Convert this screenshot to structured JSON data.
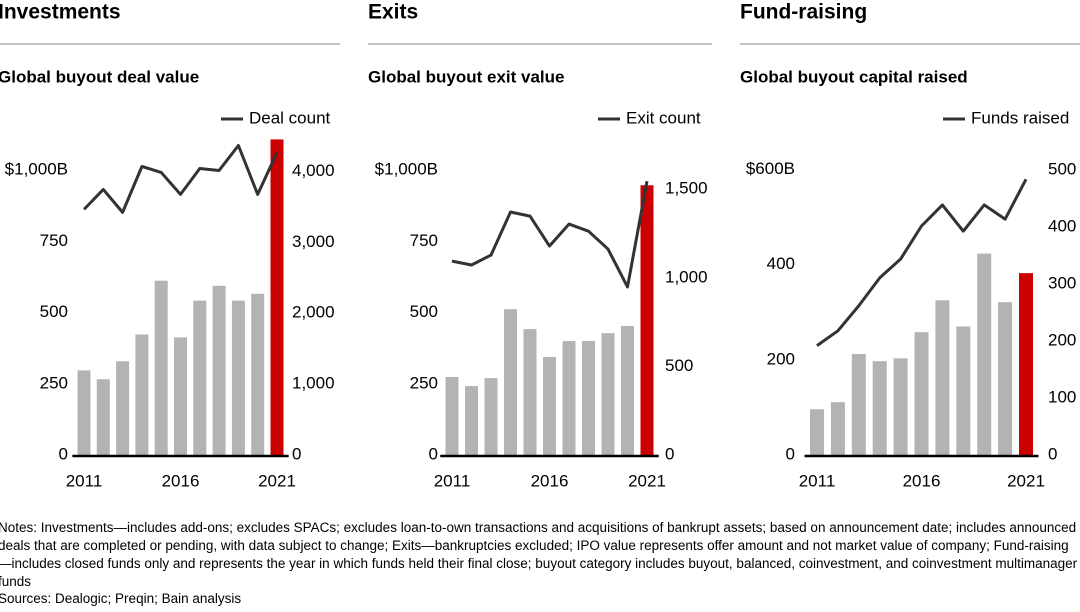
{
  "chart_data": [
    {
      "type": "bar-line",
      "section": "Investments",
      "title": "Global buyout deal value",
      "categories": [
        "2011",
        null,
        null,
        null,
        null,
        "2016",
        null,
        null,
        null,
        null,
        "2021"
      ],
      "series": [
        {
          "type": "bar",
          "colors": [
            "#b3b3b3",
            "#b3b3b3",
            "#b3b3b3",
            "#b3b3b3",
            "#b3b3b3",
            "#b3b3b3",
            "#b3b3b3",
            "#b3b3b3",
            "#b3b3b3",
            "#b3b3b3",
            "#cc0000"
          ],
          "values": [
            297,
            266,
            329,
            423,
            612,
            413,
            542,
            594,
            542,
            566,
            1108
          ]
        },
        {
          "type": "line",
          "name": "Deal count",
          "color": "#333333",
          "axis": "y2",
          "values": [
            3465,
            3746,
            3423,
            4070,
            3986,
            3676,
            4042,
            4014,
            4366,
            3676,
            4268
          ]
        }
      ],
      "ylim": [
        0,
        1120
      ],
      "yticks": [
        0,
        250,
        500,
        750,
        {
          "value": 1000,
          "label": "$1,000B"
        }
      ],
      "y2lim": [
        0,
        4500
      ],
      "y2ticks": [
        0,
        {
          "value": 1000,
          "label": "1,000"
        },
        {
          "value": 2000,
          "label": "2,000"
        },
        {
          "value": 3000,
          "label": "3,000"
        },
        {
          "value": 4000,
          "label": "4,000"
        }
      ]
    },
    {
      "type": "bar-line",
      "section": "Exits",
      "title": "Global buyout exit value",
      "categories": [
        "2011",
        null,
        null,
        null,
        null,
        "2016",
        null,
        null,
        null,
        null,
        "2021"
      ],
      "series": [
        {
          "type": "bar",
          "colors": [
            "#b3b3b3",
            "#b3b3b3",
            "#b3b3b3",
            "#b3b3b3",
            "#b3b3b3",
            "#b3b3b3",
            "#b3b3b3",
            "#b3b3b3",
            "#b3b3b3",
            "#b3b3b3",
            "#cc0000"
          ],
          "values": [
            274,
            242,
            270,
            512,
            442,
            344,
            400,
            400,
            428,
            453,
            947
          ]
        },
        {
          "type": "line",
          "name": "Exit count",
          "color": "#333333",
          "axis": "y2",
          "values": [
            1094,
            1072,
            1128,
            1371,
            1348,
            1179,
            1303,
            1263,
            1162,
            948,
            1545
          ]
        }
      ],
      "ylim": [
        0,
        1120
      ],
      "yticks": [
        0,
        250,
        500,
        750,
        {
          "value": 1000,
          "label": "$1,000B"
        }
      ],
      "y2lim": [
        0,
        1800
      ],
      "y2ticks": [
        0,
        500,
        {
          "value": 1000,
          "label": "1,000"
        },
        {
          "value": 1500,
          "label": "1,500"
        }
      ]
    },
    {
      "type": "bar-line",
      "section": "Fund-raising",
      "title": "Global buyout capital raised",
      "categories": [
        "2011",
        null,
        null,
        null,
        null,
        "2016",
        null,
        null,
        null,
        null,
        "2021"
      ],
      "series": [
        {
          "type": "bar",
          "colors": [
            "#b3b3b3",
            "#b3b3b3",
            "#b3b3b3",
            "#b3b3b3",
            "#b3b3b3",
            "#b3b3b3",
            "#b3b3b3",
            "#b3b3b3",
            "#b3b3b3",
            "#b3b3b3",
            "#cc0000"
          ],
          "values": [
            96,
            111,
            212,
            197,
            203,
            258,
            325,
            270,
            423,
            321,
            382
          ]
        },
        {
          "type": "line",
          "name": "Funds raised",
          "color": "#333333",
          "axis": "y2",
          "values": [
            192,
            218,
            262,
            311,
            344,
            402,
            439,
            393,
            439,
            414,
            484
          ]
        }
      ],
      "ylim": [
        0,
        670
      ],
      "yticks": [
        0,
        200,
        400,
        {
          "value": 600,
          "label": "$600B"
        }
      ],
      "y2lim": [
        0,
        560
      ],
      "y2ticks": [
        0,
        100,
        200,
        300,
        400,
        500
      ]
    }
  ],
  "notes": "Notes: Investments—includes add-ons; excludes SPACs; excludes loan-to-own transactions and acquisitions of bankrupt assets; based on announcement date; includes announced deals that are completed or pending, with data subject to change; Exits—bankruptcies excluded; IPO value represents offer amount and not market value of company; Fund-raising—includes closed funds only and represents the year in which funds held their final close; buyout category includes buyout, balanced, coinvestment, and coinvestment multimanager funds",
  "sources": "Sources: Dealogic; Preqin; Bain analysis"
}
